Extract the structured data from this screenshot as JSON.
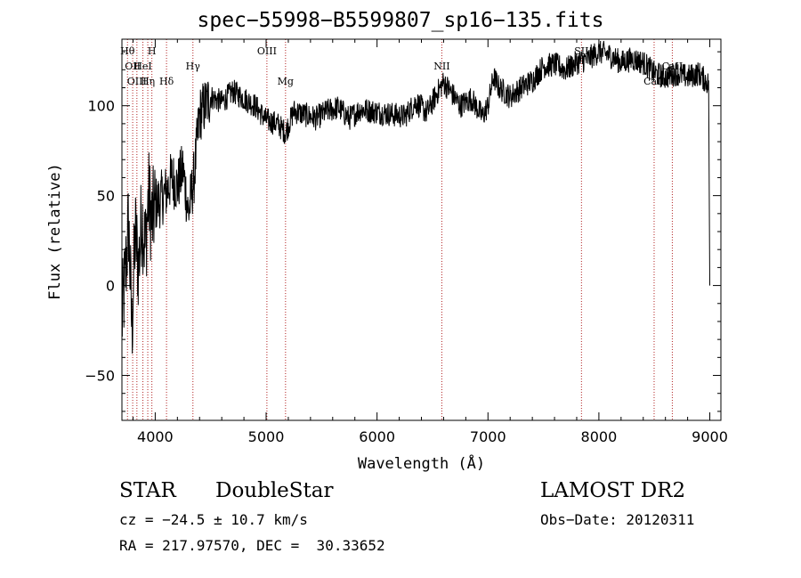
{
  "chart_data": {
    "type": "line",
    "title": "spec−55998−B5599807_sp16−135.fits",
    "xlabel": "Wavelength (Å)",
    "ylabel": "Flux (relative)",
    "xlim": [
      3700,
      9100
    ],
    "ylim": [
      -75,
      137
    ],
    "x_ticks": [
      4000,
      5000,
      6000,
      7000,
      8000,
      9000
    ],
    "x_tick_labels": [
      "4000",
      "5000",
      "6000",
      "7000",
      "8000",
      "9000"
    ],
    "y_ticks": [
      -50,
      0,
      50,
      100
    ],
    "y_tick_labels": [
      "−50",
      "0",
      "50",
      "100"
    ],
    "grid": false,
    "line_color": "#000000",
    "marker_line_color": "#b22222",
    "series": [
      {
        "x": [
          3700,
          3730,
          3760,
          3790,
          3820,
          3850,
          3880,
          3910,
          3940,
          3970,
          4000,
          4050,
          4100,
          4150,
          4200,
          4250,
          4300,
          4350,
          4400,
          4450,
          4500,
          4600,
          4700,
          4800,
          4900,
          5000,
          5100,
          5175,
          5250,
          5350,
          5450,
          5550,
          5650,
          5750,
          5850,
          5950,
          6050,
          6150,
          6250,
          6350,
          6450,
          6550,
          6600,
          6650,
          6750,
          6850,
          6950,
          7000,
          7050,
          7100,
          7200,
          7300,
          7400,
          7500,
          7600,
          7700,
          7800,
          7900,
          8000,
          8100,
          8200,
          8300,
          8400,
          8500,
          8600,
          8700,
          8800,
          8900,
          8990,
          9000
        ],
        "y": [
          -20,
          5,
          35,
          -25,
          30,
          10,
          40,
          20,
          50,
          35,
          45,
          48,
          52,
          60,
          55,
          65,
          40,
          60,
          95,
          100,
          105,
          102,
          108,
          104,
          100,
          92,
          90,
          85,
          97,
          95,
          93,
          97,
          99,
          93,
          98,
          97,
          96,
          95,
          94,
          102,
          96,
          108,
          113,
          109,
          100,
          104,
          94,
          100,
          116,
          110,
          105,
          110,
          114,
          122,
          123,
          120,
          124,
          126,
          130,
          128,
          124,
          126,
          124,
          118,
          116,
          118,
          116,
          118,
          112,
          0
        ]
      }
    ],
    "line_markers": [
      {
        "wavelength": 3750,
        "label": "Hθ",
        "row": 1
      },
      {
        "wavelength": 3797,
        "label": "OII",
        "row": 2
      },
      {
        "wavelength": 3835,
        "label": "OIII",
        "row": 3
      },
      {
        "wavelength": 3889,
        "label": "HeI",
        "row": 2
      },
      {
        "wavelength": 3933,
        "label": "Hη",
        "row": 3
      },
      {
        "wavelength": 3970,
        "label": "H",
        "row": 1
      },
      {
        "wavelength": 4102,
        "label": "Hδ",
        "row": 3
      },
      {
        "wavelength": 4340,
        "label": "Hγ",
        "row": 2
      },
      {
        "wavelength": 5007,
        "label": "OIII",
        "row": 1
      },
      {
        "wavelength": 5175,
        "label": "Mg",
        "row": 3
      },
      {
        "wavelength": 6584,
        "label": "NII",
        "row": 2
      },
      {
        "wavelength": 7843,
        "label": "SII",
        "row": 1
      },
      {
        "wavelength": 8498,
        "label": "CaII",
        "row": 3
      },
      {
        "wavelength": 8662,
        "label": "CaII",
        "row": 2
      }
    ]
  },
  "info": {
    "class": "STAR",
    "subclass": "DoubleStar",
    "survey": "LAMOST DR2",
    "cz": "cz = −24.5 ± 10.7 km/s",
    "obs_date": "Obs−Date: 20120311",
    "radec": "RA = 217.97570, DEC =  30.33652"
  }
}
